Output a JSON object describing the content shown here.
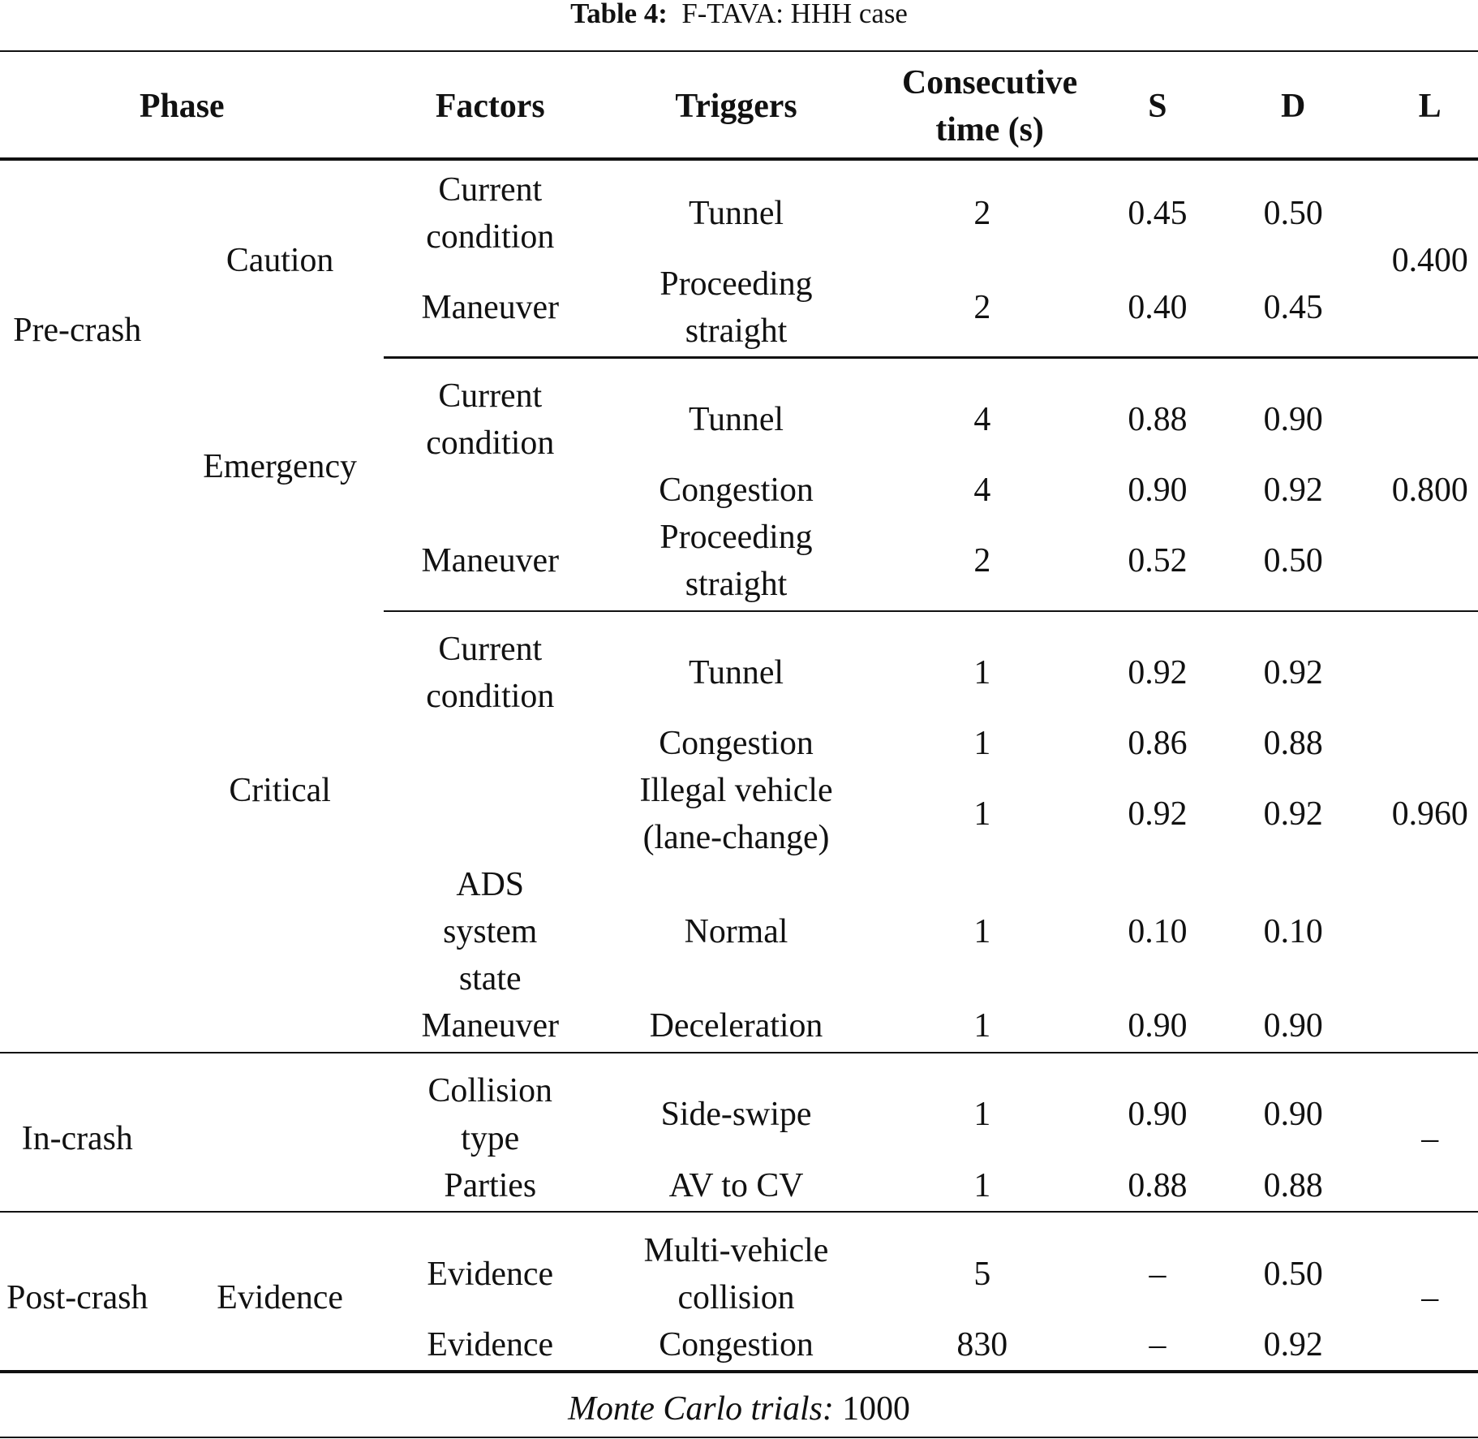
{
  "caption": {
    "label": "Table 4:",
    "text": "F-TAVA: HHH case"
  },
  "headers": {
    "phase": "Phase",
    "factors": "Factors",
    "triggers": "Triggers",
    "time": "Consecutive\ntime (s)",
    "s": "S",
    "d": "D",
    "l": "L"
  },
  "phases": [
    {
      "name": "Pre-crash",
      "subphases": [
        {
          "name": "Caution",
          "L": "0.400",
          "rows": [
            {
              "factor": "Current\ncondition",
              "trigger": "Tunnel",
              "time": "2",
              "S": "0.45",
              "D": "0.50"
            },
            {
              "factor": "Maneuver",
              "trigger": "Proceeding\nstraight",
              "time": "2",
              "S": "0.40",
              "D": "0.45"
            }
          ]
        },
        {
          "name": "Emergency",
          "L": "0.800",
          "rows": [
            {
              "factor": "Current\ncondition",
              "trigger": "Tunnel",
              "time": "4",
              "S": "0.88",
              "D": "0.90"
            },
            {
              "factor": "",
              "trigger": "Congestion",
              "time": "4",
              "S": "0.90",
              "D": "0.92"
            },
            {
              "factor": "Maneuver",
              "trigger": "Proceeding\nstraight",
              "time": "2",
              "S": "0.52",
              "D": "0.50"
            }
          ]
        },
        {
          "name": "Critical",
          "L": "0.960",
          "rows": [
            {
              "factor": "Current\ncondition",
              "trigger": "Tunnel",
              "time": "1",
              "S": "0.92",
              "D": "0.92"
            },
            {
              "factor": "",
              "trigger": "Congestion",
              "time": "1",
              "S": "0.86",
              "D": "0.88"
            },
            {
              "factor": "",
              "trigger": "Illegal vehicle\n(lane-change)",
              "time": "1",
              "S": "0.92",
              "D": "0.92"
            },
            {
              "factor": "ADS\nsystem\nstate",
              "trigger": "Normal",
              "time": "1",
              "S": "0.10",
              "D": "0.10"
            },
            {
              "factor": "Maneuver",
              "trigger": "Deceleration",
              "time": "1",
              "S": "0.90",
              "D": "0.90"
            }
          ]
        }
      ]
    },
    {
      "name": "In-crash",
      "subphases": [
        {
          "name": "",
          "L": "–",
          "rows": [
            {
              "factor": "Collision\ntype",
              "trigger": "Side-swipe",
              "time": "1",
              "S": "0.90",
              "D": "0.90"
            },
            {
              "factor": "Parties",
              "trigger": "AV to CV",
              "time": "1",
              "S": "0.88",
              "D": "0.88"
            }
          ]
        }
      ]
    },
    {
      "name": "Post-crash",
      "subphases": [
        {
          "name": "Evidence",
          "L": "–",
          "rows": [
            {
              "factor": "Evidence",
              "trigger": "Multi-vehicle\ncollision",
              "time": "5",
              "S": "–",
              "D": "0.50"
            },
            {
              "factor": "Evidence",
              "trigger": "Congestion",
              "time": "830",
              "S": "–",
              "D": "0.92"
            }
          ]
        }
      ]
    }
  ],
  "footer": {
    "label": "Monte Carlo trials:",
    "value": "1000"
  }
}
